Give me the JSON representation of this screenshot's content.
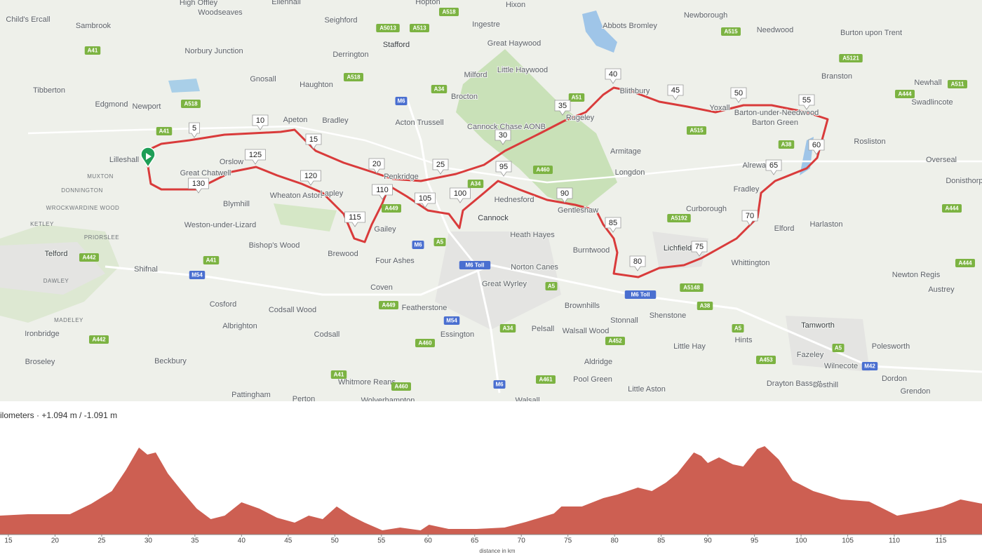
{
  "map": {
    "places": [
      "Child's Ercall",
      "Sambrook",
      "High Offley",
      "Woodseaves",
      "Ellenhall",
      "Seighford",
      "Hopton",
      "Hixon",
      "Newborough",
      "Abbots Bromley",
      "Needwood",
      "Burton upon Trent",
      "Norbury Junction",
      "Derrington",
      "Stafford",
      "Ingestre",
      "Great Haywood",
      "Little Haywood",
      "Gnosall",
      "Haughton",
      "Milford",
      "Tibberton",
      "Edgmond",
      "Newport",
      "Brocton",
      "Bradley",
      "Apeton",
      "Acton Trussell",
      "Cannock Chase AONB",
      "Rugeley",
      "Armitage",
      "Longdon",
      "Blithbury",
      "Yoxall",
      "Barton-under-Needwood",
      "Barton Green",
      "Branston",
      "Newhall",
      "Swadlincote",
      "Rosliston",
      "Overseal",
      "Donisthorpe",
      "Lilleshall",
      "Great Chatwell",
      "Orslow",
      "Blymhill",
      "Wheaton Aston",
      "Lapley",
      "Penkridge",
      "Hednesford",
      "Gentleshaw",
      "Alrewas",
      "Fradley",
      "Curborough",
      "Elford",
      "Harlaston",
      "Weston-under-Lizard",
      "Bishop's Wood",
      "Brewood",
      "Gailey",
      "Cannock",
      "Heath Hayes",
      "Burntwood",
      "Lichfield",
      "Whittington",
      "Newton Regis",
      "Austrey",
      "Telford",
      "Shifnal",
      "Four Ashes",
      "Norton Canes",
      "Great Wyrley",
      "Coven",
      "Cosford",
      "Codsall Wood",
      "Albrighton",
      "Featherstone",
      "Brownhills",
      "Stonnall",
      "Shenstone",
      "Tamworth",
      "Ironbridge",
      "Codsall",
      "Essington",
      "Pelsall",
      "Walsall Wood",
      "Hints",
      "Little Hay",
      "Polesworth",
      "Broseley",
      "Beckbury",
      "Aldridge",
      "Fazeley",
      "Wilnecote",
      "Dordon",
      "Whitmore Reans",
      "Pool Green",
      "Drayton Bassett",
      "Dosthill",
      "Grendon",
      "Pattingham",
      "Perton",
      "Little Aston",
      "Wolverhampton",
      "Walsall"
    ],
    "districts": [
      "MUXTON",
      "DONNINGTON",
      "WROCKWARDINE WOOD",
      "KETLEY",
      "PRIORSLEE",
      "DAWLEY",
      "MADELEY"
    ],
    "roads": [
      "A41",
      "A518",
      "A41",
      "A518",
      "A5013",
      "A513",
      "A518",
      "A515",
      "A5121",
      "A444",
      "A511",
      "A51",
      "A34",
      "M6",
      "A515",
      "A38",
      "A460",
      "A34",
      "A449",
      "M6",
      "A5",
      "A5192",
      "A444",
      "A442",
      "A41",
      "M54",
      "M6 Toll",
      "A5",
      "M6 Toll",
      "A5148",
      "A38",
      "A5",
      "A449",
      "M54",
      "A34",
      "A460",
      "A452",
      "A442",
      "A41",
      "A460",
      "M6",
      "A461",
      "A453",
      "A5",
      "M42",
      "A444"
    ],
    "km_markers": [
      5,
      10,
      15,
      20,
      25,
      30,
      35,
      40,
      45,
      50,
      55,
      60,
      65,
      70,
      75,
      80,
      85,
      90,
      95,
      100,
      105,
      110,
      115,
      120,
      125,
      130
    ]
  },
  "chart_data": {
    "type": "area",
    "title": "ilometers · +1.094 m / -1.091 m",
    "xlabel": "distance in km",
    "color": "#cd5f52",
    "x": [
      14.1,
      17.1,
      21.6,
      23.9,
      26.1,
      27.6,
      29.0,
      29.9,
      30.8,
      32.1,
      33.6,
      35.2,
      36.7,
      38.2,
      40.0,
      41.9,
      43.8,
      45.7,
      47.2,
      48.7,
      50.2,
      51.7,
      53.2,
      55.1,
      57.0,
      59.2,
      60.1,
      62.2,
      65.2,
      68.2,
      70.5,
      73.5,
      74.3,
      76.5,
      78.8,
      80.3,
      82.5,
      84.0,
      85.5,
      86.7,
      88.5,
      89.3,
      90.0,
      91.2,
      92.7,
      93.8,
      95.3,
      96.1,
      97.6,
      99.1,
      101.3,
      104.3,
      107.3,
      110.3,
      113.3,
      115.2,
      117.1,
      119.4
    ],
    "values": [
      27,
      29,
      29,
      44,
      62,
      92,
      124,
      114,
      117,
      87,
      62,
      37,
      22,
      27,
      46,
      37,
      24,
      17,
      27,
      22,
      40,
      27,
      17,
      6,
      10,
      6,
      14,
      8,
      8,
      10,
      18,
      30,
      40,
      40,
      52,
      57,
      67,
      62,
      74,
      87,
      117,
      112,
      102,
      110,
      100,
      97,
      122,
      126,
      107,
      77,
      62,
      50,
      47,
      27,
      34,
      40,
      50,
      44
    ],
    "xlim": [
      14.1,
      119.4
    ],
    "xticks": [
      15,
      20,
      25,
      30,
      35,
      40,
      45,
      50,
      55,
      60,
      65,
      70,
      75,
      80,
      85,
      90,
      95,
      100,
      105,
      110,
      115
    ],
    "ylim": [
      0,
      130
    ]
  }
}
